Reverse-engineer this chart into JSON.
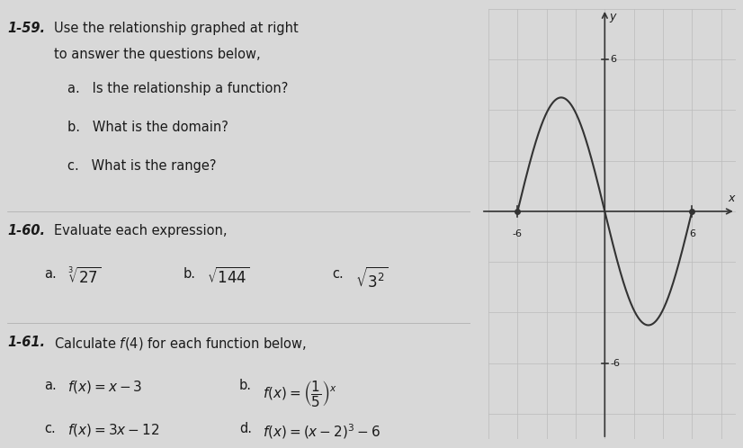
{
  "bg_color": "#d8d8d8",
  "text_color": "#1a1a1a",
  "problem_159_label": "1-59.",
  "problem_159_title": "Use the relationship graphed at right\nto answer the questions below,",
  "problem_159_a": "a.   Is the relationship a function?",
  "problem_159_b": "b.   What is the domain?",
  "problem_159_c": "c.   What is the range?",
  "problem_160_label": "1-60.",
  "problem_160_title": "Evaluate each expression.",
  "problem_160_a": "a.",
  "problem_160_a_math": "$\\sqrt[3]{27}$",
  "problem_160_b": "b.",
  "problem_160_b_math": "$\\sqrt{144}$",
  "problem_160_c": "c.",
  "problem_160_c_math": "$\\sqrt{3^2}$",
  "problem_161_label": "1-61.",
  "problem_161_title": "Calculate $f(4)$ for each function below.",
  "problem_161_a": "a.",
  "problem_161_a_math": "$f(x)=x-3$",
  "problem_161_b": "b.",
  "problem_161_b_math": "$f(x)=\\left(\\frac{1}{5}\\right)^x$",
  "problem_161_c": "c.",
  "problem_161_c_math": "$f(x)=3x-12$",
  "problem_161_d": "d.",
  "problem_161_d_math": "$f(x)=(x-2)^3-6$",
  "graph_xlim": [
    -8,
    9
  ],
  "graph_ylim": [
    -9,
    8
  ],
  "graph_tick_step": 6,
  "graph_color": "#333333",
  "grid_color": "#bbbbbb",
  "axis_label_x": "x",
  "axis_label_y": "y",
  "font_size_label": 10,
  "font_size_text": 10.5,
  "font_size_math": 11
}
